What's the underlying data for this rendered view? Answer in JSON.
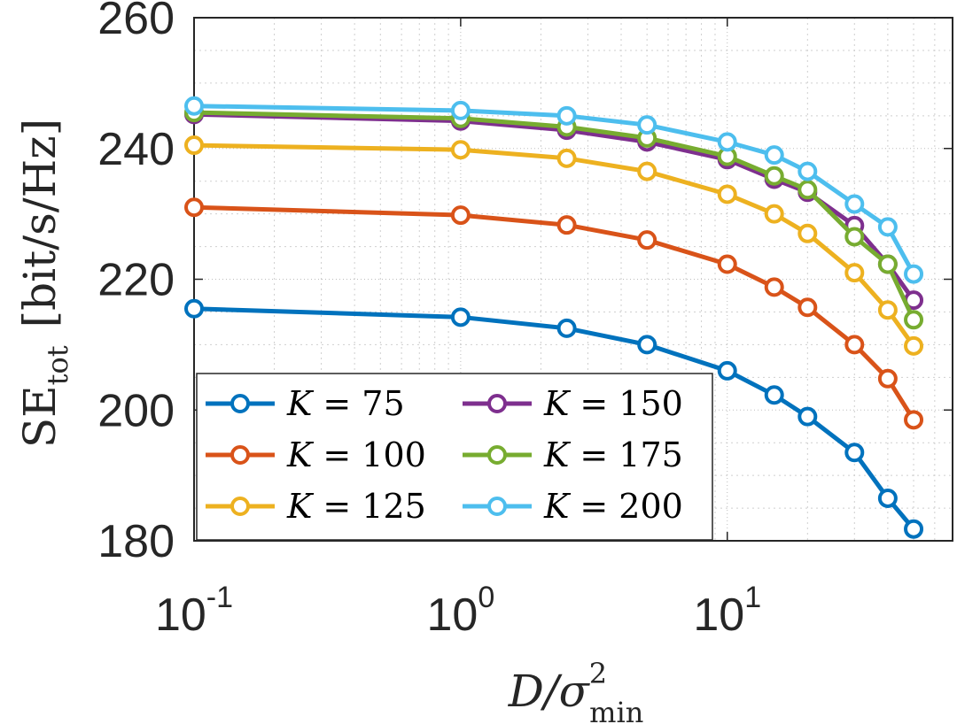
{
  "chart_data": {
    "type": "line",
    "title": "",
    "xscale": "log",
    "xlim": [
      0.1,
      70
    ],
    "ylim": [
      180,
      260
    ],
    "grid": true,
    "minor_grid": true,
    "x": [
      0.1,
      1,
      2.5,
      5,
      10,
      15,
      20,
      30,
      40,
      50
    ],
    "xticks": [
      0.1,
      1,
      10
    ],
    "xtick_labels": [
      {
        "base": "10",
        "exp": "-1"
      },
      {
        "base": "10",
        "exp": "0"
      },
      {
        "base": "10",
        "exp": "1"
      }
    ],
    "yticks": [
      180,
      200,
      220,
      240,
      260
    ],
    "ytick_labels": [
      "180",
      "200",
      "220",
      "240",
      "260"
    ],
    "xlabel": {
      "main": "D/σ",
      "sup": "2",
      "sub": "min"
    },
    "ylabel": {
      "main": "SE",
      "sub": "tot",
      "unit": "[bit/s/Hz]"
    },
    "legend_location": "bottom-left",
    "legend_columns": 2,
    "series": [
      {
        "name": "K = 75",
        "var": "K",
        "eq": "= 75",
        "color": "#0072BD",
        "values": [
          215.5,
          214.2,
          212.5,
          210.0,
          206.0,
          202.3,
          199.0,
          193.5,
          186.5,
          181.8
        ]
      },
      {
        "name": "K = 100",
        "var": "K",
        "eq": "= 100",
        "color": "#D95319",
        "values": [
          231.0,
          229.8,
          228.3,
          226.0,
          222.3,
          218.8,
          215.7,
          210.0,
          204.8,
          198.5
        ]
      },
      {
        "name": "K = 125",
        "var": "K",
        "eq": "= 125",
        "color": "#EDB120",
        "values": [
          240.5,
          239.8,
          238.5,
          236.5,
          233.0,
          230.0,
          227.0,
          221.0,
          215.3,
          209.8
        ]
      },
      {
        "name": "K = 150",
        "var": "K",
        "eq": "= 150",
        "color": "#7E2F8E",
        "values": [
          245.2,
          244.2,
          242.8,
          241.0,
          238.3,
          235.3,
          233.3,
          228.2,
          222.3,
          216.8
        ]
      },
      {
        "name": "K = 175",
        "var": "K",
        "eq": "= 175",
        "color": "#77AC30",
        "values": [
          245.5,
          244.6,
          243.3,
          241.6,
          238.8,
          235.8,
          233.7,
          226.5,
          222.3,
          213.8
        ]
      },
      {
        "name": "K = 200",
        "var": "K",
        "eq": "= 200",
        "color": "#4DBEEE",
        "values": [
          246.5,
          245.8,
          245.0,
          243.6,
          241.0,
          239.0,
          236.5,
          231.5,
          228.0,
          220.8
        ]
      }
    ]
  }
}
